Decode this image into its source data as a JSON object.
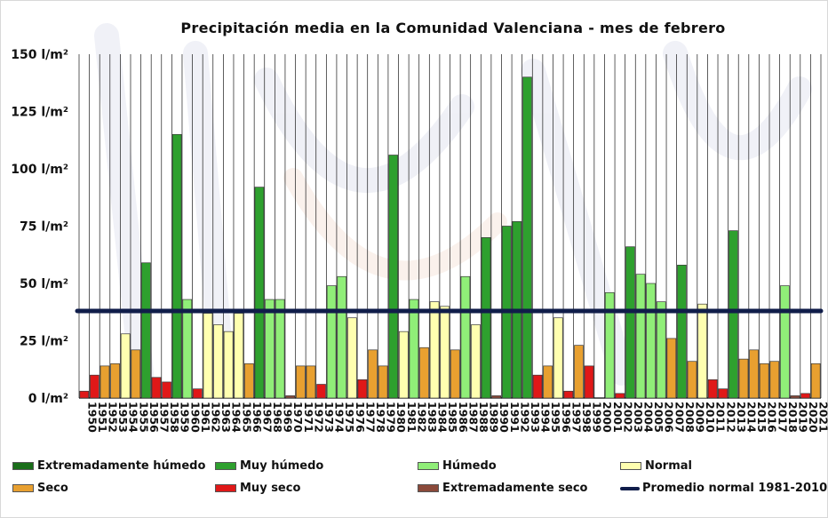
{
  "chart_data": {
    "type": "bar",
    "title": "Precipitación media en la Comunidad Valenciana - mes de febrero",
    "ylim": [
      0,
      150
    ],
    "y_ticks": [
      {
        "value": 0,
        "label": "0 l/m²"
      },
      {
        "value": 25,
        "label": "25 l/m²"
      },
      {
        "value": 50,
        "label": "50 l/m²"
      },
      {
        "value": 75,
        "label": "75 l/m²"
      },
      {
        "value": 100,
        "label": "100 l/m²"
      },
      {
        "value": 125,
        "label": "125 l/m²"
      },
      {
        "value": 150,
        "label": "150 l/m²"
      }
    ],
    "grid": "vertical",
    "categories": [
      "1950",
      "1951",
      "1952",
      "1953",
      "1954",
      "1955",
      "1956",
      "1957",
      "1958",
      "1959",
      "1960",
      "1961",
      "1962",
      "1963",
      "1964",
      "1965",
      "1966",
      "1967",
      "1968",
      "1969",
      "1970",
      "1971",
      "1972",
      "1973",
      "1974",
      "1975",
      "1976",
      "1977",
      "1978",
      "1979",
      "1980",
      "1981",
      "1982",
      "1983",
      "1984",
      "1985",
      "1986",
      "1987",
      "1988",
      "1989",
      "1990",
      "1991",
      "1992",
      "1993",
      "1994",
      "1995",
      "1996",
      "1997",
      "1998",
      "1999",
      "2000",
      "2001",
      "2002",
      "2003",
      "2004",
      "2005",
      "2006",
      "2007",
      "2008",
      "2009",
      "2010",
      "2011",
      "2012",
      "2013",
      "2014",
      "2015",
      "2016",
      "2017",
      "2018",
      "2019",
      "2020",
      "2021"
    ],
    "values": [
      3,
      10,
      14,
      15,
      28,
      21,
      59,
      9,
      7,
      115,
      43,
      4,
      37,
      32,
      29,
      37,
      15,
      92,
      43,
      43,
      1,
      14,
      14,
      6,
      49,
      53,
      35,
      8,
      21,
      14,
      106,
      29,
      43,
      22,
      42,
      40,
      21,
      53,
      32,
      70,
      1,
      75,
      77,
      140,
      10,
      14,
      35,
      3,
      23,
      14,
      0,
      46,
      2,
      66,
      54,
      50,
      42,
      26,
      58,
      16,
      41,
      8,
      4,
      73,
      17,
      21,
      15,
      16,
      49,
      1,
      2,
      15
    ],
    "classes": [
      "muy_seco",
      "muy_seco",
      "seco",
      "seco",
      "normal",
      "seco",
      "muy_humedo",
      "muy_seco",
      "muy_seco",
      "muy_humedo",
      "humedo",
      "muy_seco",
      "normal",
      "normal",
      "normal",
      "normal",
      "seco",
      "muy_humedo",
      "humedo",
      "humedo",
      "extremadamente_seco",
      "seco",
      "seco",
      "muy_seco",
      "humedo",
      "humedo",
      "normal",
      "muy_seco",
      "seco",
      "seco",
      "muy_humedo",
      "normal",
      "humedo",
      "seco",
      "normal",
      "normal",
      "seco",
      "humedo",
      "normal",
      "muy_humedo",
      "extremadamente_seco",
      "muy_humedo",
      "muy_humedo",
      "muy_humedo",
      "muy_seco",
      "seco",
      "normal",
      "muy_seco",
      "seco",
      "muy_seco",
      "extremadamente_seco",
      "humedo",
      "muy_seco",
      "muy_humedo",
      "humedo",
      "humedo",
      "humedo",
      "seco",
      "muy_humedo",
      "seco",
      "normal",
      "muy_seco",
      "muy_seco",
      "muy_humedo",
      "seco",
      "seco",
      "seco",
      "seco",
      "humedo",
      "extremadamente_seco",
      "muy_seco",
      "seco"
    ],
    "reference_line": {
      "name": "Promedio normal 1981-2010",
      "value": 38,
      "color": "#101d4a"
    },
    "class_colors": {
      "extremadamente_humedo": "#1a6e1a",
      "muy_humedo": "#2ea02e",
      "humedo": "#90ee78",
      "normal": "#ffffb0",
      "seco": "#e8a030",
      "muy_seco": "#e01818",
      "extremadamente_seco": "#8b4a3a"
    },
    "legend": [
      {
        "key": "extremadamente_humedo",
        "label": "Extremadamente húmedo"
      },
      {
        "key": "muy_humedo",
        "label": "Muy húmedo"
      },
      {
        "key": "humedo",
        "label": "Húmedo"
      },
      {
        "key": "normal",
        "label": "Normal"
      },
      {
        "key": "seco",
        "label": "Seco"
      },
      {
        "key": "muy_seco",
        "label": "Muy seco"
      },
      {
        "key": "extremadamente_seco",
        "label": "Extremadamente seco"
      },
      {
        "key": "promedio",
        "label": "Promedio normal 1981-2010"
      }
    ],
    "legend_position": "bottom"
  }
}
